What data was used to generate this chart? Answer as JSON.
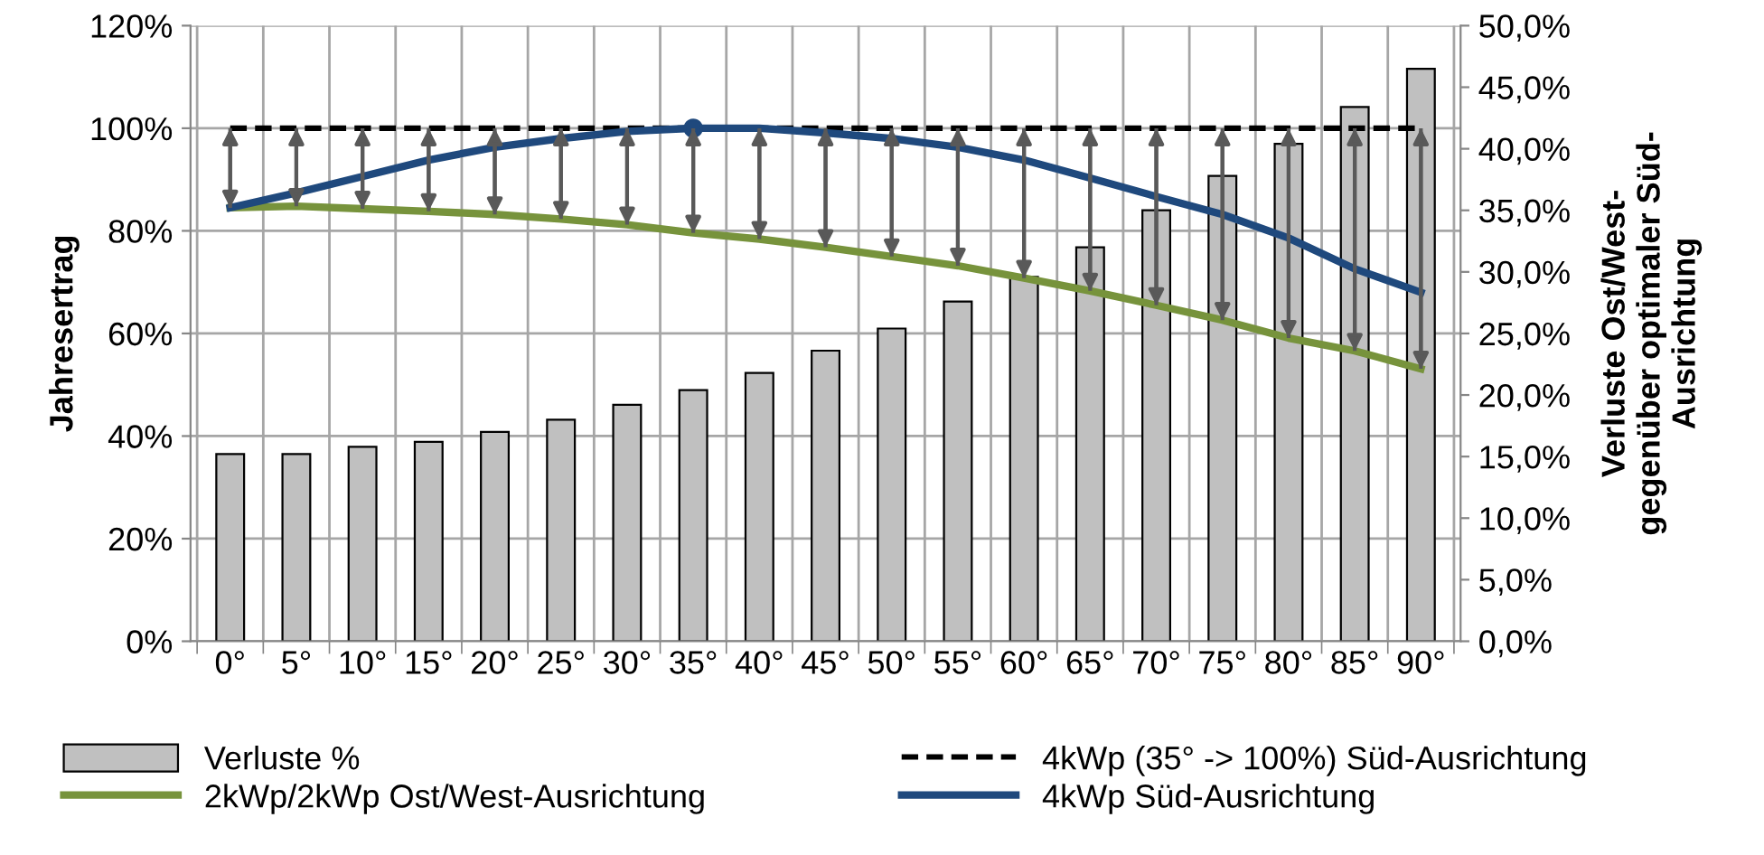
{
  "chart_data": {
    "type": "line",
    "categories": [
      "0°",
      "5°",
      "10°",
      "15°",
      "20°",
      "25°",
      "30°",
      "35°",
      "40°",
      "45°",
      "50°",
      "55°",
      "60°",
      "65°",
      "70°",
      "75°",
      "80°",
      "85°",
      "90°"
    ],
    "ylabel": "Jahresertrag",
    "y2label": "Verluste Ost/West-\ngegenüber optimaler Süd-\nAusrichtung",
    "ylim": [
      0,
      120
    ],
    "yticks": [
      {
        "value": 0,
        "label": "0%"
      },
      {
        "value": 20,
        "label": "20%"
      },
      {
        "value": 40,
        "label": "40%"
      },
      {
        "value": 60,
        "label": "60%"
      },
      {
        "value": 80,
        "label": "80%"
      },
      {
        "value": 100,
        "label": "100%"
      },
      {
        "value": 120,
        "label": "120%"
      }
    ],
    "y2lim": [
      0,
      50
    ],
    "y2ticks": [
      {
        "value": 0,
        "label": "0,0%"
      },
      {
        "value": 5,
        "label": "5,0%"
      },
      {
        "value": 10,
        "label": "10,0%"
      },
      {
        "value": 15,
        "label": "15,0%"
      },
      {
        "value": 20,
        "label": "20,0%"
      },
      {
        "value": 25,
        "label": "25,0%"
      },
      {
        "value": 30,
        "label": "30,0%"
      },
      {
        "value": 35,
        "label": "35,0%"
      },
      {
        "value": 40,
        "label": "40,0%"
      },
      {
        "value": 45,
        "label": "45,0%"
      },
      {
        "value": 50,
        "label": "50,0%"
      }
    ],
    "grid": true,
    "legend": "bottom",
    "series": [
      {
        "name": "Verluste %",
        "type": "bar",
        "axis": "y2",
        "color": "#c0c0c0",
        "values": [
          15.2,
          15.2,
          15.8,
          16.2,
          17.0,
          18.0,
          19.2,
          20.4,
          21.8,
          23.6,
          25.4,
          27.6,
          29.6,
          32.0,
          35.0,
          37.8,
          40.4,
          43.4,
          46.5
        ]
      },
      {
        "name": "2kWp/2kWp Ost/West-Ausrichtung",
        "color": "#77933c",
        "line_style": "solid",
        "values": [
          84.5,
          84.8,
          84.3,
          83.8,
          83.2,
          82.3,
          81.2,
          79.6,
          78.4,
          76.8,
          75.0,
          73.2,
          70.8,
          68.3,
          65.5,
          62.6,
          59.1,
          56.6,
          53.1
        ],
        "errors": [
          [
            84.5,
            100
          ],
          [
            84.8,
            100
          ],
          [
            84.3,
            100
          ],
          [
            83.8,
            100
          ],
          [
            83.2,
            100
          ],
          [
            82.3,
            100
          ],
          [
            81.2,
            100
          ],
          [
            79.6,
            100
          ],
          [
            78.4,
            100
          ],
          [
            76.8,
            100
          ],
          [
            75.0,
            100
          ],
          [
            73.2,
            100
          ],
          [
            70.8,
            100
          ],
          [
            68.3,
            100
          ],
          [
            65.5,
            100
          ],
          [
            62.6,
            100
          ],
          [
            59.1,
            100
          ],
          [
            56.6,
            100
          ],
          [
            53.1,
            100
          ]
        ]
      },
      {
        "name": "4kWp (35° -> 100%) Süd-Ausrichtung",
        "color": "#000000",
        "line_style": "dashed",
        "values": [
          100,
          100,
          100,
          100,
          100,
          100,
          100,
          100,
          100,
          100,
          100,
          100,
          100,
          100,
          100,
          100,
          100,
          100,
          100
        ]
      },
      {
        "name": "4kWp Süd-Ausrichtung",
        "color": "#1f497d",
        "line_style": "solid",
        "values": [
          84.5,
          87.4,
          90.6,
          93.8,
          96.3,
          98.0,
          99.4,
          100,
          100,
          99.1,
          98.0,
          96.3,
          93.8,
          90.3,
          86.7,
          83.2,
          78.6,
          72.6,
          68.0
        ]
      },
      {
        "type": "scatter",
        "color": "#1f497d",
        "marker": "circle",
        "values": [
          null,
          null,
          null,
          null,
          null,
          null,
          null,
          100,
          null,
          null,
          null,
          null,
          null,
          null,
          null,
          null,
          null,
          null,
          null
        ]
      }
    ]
  }
}
